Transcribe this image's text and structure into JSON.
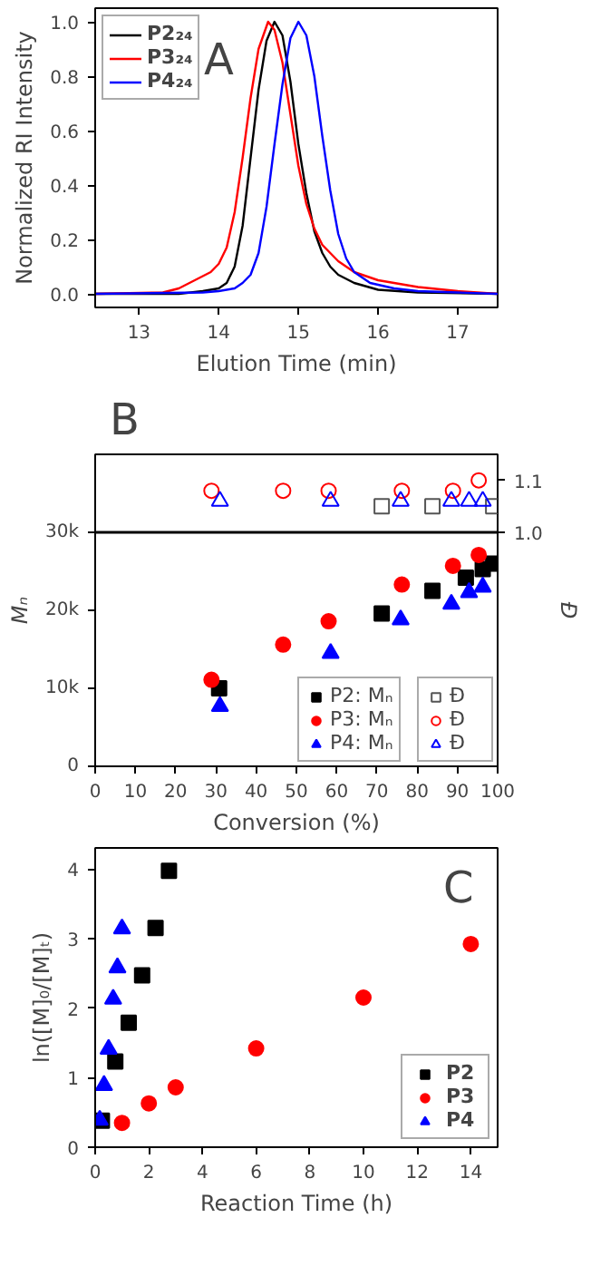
{
  "chart_data": [
    {
      "type": "line",
      "xlabel": "Elution Time (min)",
      "ylabel": "Normalized RI Intensity",
      "annotations": [
        "A"
      ],
      "xlim": [
        12.45,
        17.5
      ],
      "ylim": [
        -0.05,
        1.05
      ],
      "xticks": [
        13,
        14,
        15,
        16,
        17
      ],
      "yticks": [
        {
          "value": 0,
          "label": "0.0"
        },
        {
          "value": 0.2,
          "label": "0.2"
        },
        {
          "value": 0.4,
          "label": "0.4"
        },
        {
          "value": 0.6,
          "label": "0.6"
        },
        {
          "value": 0.8,
          "label": "0.8"
        },
        {
          "value": 1,
          "label": "1.0"
        }
      ],
      "grid": false,
      "legend": "top left",
      "marker": "none",
      "line_style": "solid",
      "series": [
        {
          "name": "P2₂₄",
          "color": "#000000",
          "x": [
            12.45,
            13.5,
            13.8,
            14.0,
            14.1,
            14.2,
            14.3,
            14.4,
            14.5,
            14.6,
            14.7,
            14.8,
            14.9,
            15.0,
            15.1,
            15.2,
            15.3,
            15.4,
            15.5,
            15.7,
            16.0,
            16.5,
            17.5
          ],
          "values": [
            0,
            0,
            0.01,
            0.02,
            0.04,
            0.1,
            0.25,
            0.5,
            0.75,
            0.93,
            1.0,
            0.95,
            0.78,
            0.55,
            0.37,
            0.23,
            0.15,
            0.1,
            0.07,
            0.04,
            0.015,
            0.005,
            0
          ]
        },
        {
          "name": "P3₂₄",
          "color": "#ff0000",
          "x": [
            12.45,
            13.3,
            13.5,
            13.7,
            13.9,
            14.0,
            14.1,
            14.2,
            14.3,
            14.4,
            14.5,
            14.62,
            14.7,
            14.8,
            14.9,
            15.0,
            15.1,
            15.2,
            15.3,
            15.5,
            15.7,
            16.0,
            16.5,
            17.0,
            17.5
          ],
          "values": [
            0,
            0.005,
            0.02,
            0.05,
            0.08,
            0.11,
            0.17,
            0.3,
            0.5,
            0.72,
            0.9,
            1.0,
            0.97,
            0.85,
            0.66,
            0.47,
            0.33,
            0.24,
            0.18,
            0.12,
            0.08,
            0.05,
            0.025,
            0.01,
            0
          ]
        },
        {
          "name": "P4₂₄",
          "color": "#0000ff",
          "x": [
            12.45,
            13.8,
            14.0,
            14.2,
            14.3,
            14.4,
            14.5,
            14.6,
            14.7,
            14.8,
            14.9,
            15.0,
            15.1,
            15.2,
            15.3,
            15.4,
            15.5,
            15.6,
            15.7,
            15.9,
            16.2,
            16.5,
            17.0,
            17.5
          ],
          "values": [
            0,
            0.005,
            0.01,
            0.02,
            0.04,
            0.07,
            0.15,
            0.32,
            0.55,
            0.77,
            0.94,
            1.0,
            0.95,
            0.8,
            0.58,
            0.38,
            0.22,
            0.13,
            0.08,
            0.04,
            0.02,
            0.01,
            0.005,
            0
          ]
        }
      ]
    },
    {
      "type": "scatter",
      "xlabel": "Conversion (%)",
      "ylabel": "Mₙ",
      "y2label": "Đ",
      "annotations": [
        "B"
      ],
      "xlim": [
        0,
        100
      ],
      "ylim": [
        0,
        40000
      ],
      "y2lim": [
        0.55,
        1.15
      ],
      "xticks": [
        0,
        10,
        20,
        30,
        40,
        50,
        60,
        70,
        80,
        90,
        100
      ],
      "yticks": [
        0,
        {
          "value": 10000,
          "label": "10k"
        },
        {
          "value": 20000,
          "label": "20k"
        },
        {
          "value": 30000,
          "label": "30k"
        }
      ],
      "y2ticks": [
        {
          "value": 1.0,
          "label": "1.0"
        },
        {
          "value": 1.1,
          "label": "1.1"
        }
      ],
      "grid": false,
      "legend": "bottom right",
      "ref_lines": [
        {
          "axis": "y",
          "value": 30000,
          "color": "#000000"
        }
      ],
      "series": [
        {
          "name": "P2: Mₙ",
          "color": "#000000",
          "marker": "square",
          "x": [
            30.8,
            71.2,
            83.8,
            92.1,
            96.3,
            98.9
          ],
          "values": [
            10000,
            19600,
            22500,
            24200,
            25300,
            26000
          ]
        },
        {
          "name": "Đ",
          "color": "#555555",
          "marker": "square",
          "axis": "y2",
          "x": [
            71.2,
            83.8,
            98.9
          ],
          "values": [
            1.05,
            1.05,
            1.05
          ]
        },
        {
          "name": "P3: Mₙ",
          "color": "#ff0000",
          "marker": "circle",
          "x": [
            28.9,
            46.7,
            58.0,
            76.2,
            88.9,
            95.3
          ],
          "values": [
            11100,
            15600,
            18600,
            23300,
            25700,
            27100
          ]
        },
        {
          "name": "Đ",
          "color": "#ff0000",
          "marker": "circle",
          "axis": "y2",
          "x": [
            28.9,
            46.7,
            58.0,
            76.2,
            88.9,
            95.3
          ],
          "values": [
            1.08,
            1.08,
            1.08,
            1.08,
            1.08,
            1.1
          ]
        },
        {
          "name": "P4: Mₙ",
          "color": "#0000ff",
          "marker": "triangle",
          "x": [
            31.0,
            58.5,
            75.9,
            88.5,
            92.9,
            96.3
          ],
          "values": [
            7700,
            14500,
            18800,
            20800,
            22300,
            23000
          ]
        },
        {
          "name": "Đ",
          "color": "#0000ff",
          "marker": "triangle",
          "axis": "y2",
          "x": [
            31.0,
            58.5,
            75.9,
            88.5,
            92.9,
            96.3
          ],
          "values": [
            1.06,
            1.06,
            1.06,
            1.06,
            1.06,
            1.06
          ]
        }
      ]
    },
    {
      "type": "scatter",
      "xlabel": "Reaction Time (h)",
      "ylabel": "ln([M]₀/[M]ₜ)",
      "annotations": [
        "C"
      ],
      "xlim": [
        0,
        15
      ],
      "ylim": [
        0,
        4.3
      ],
      "xticks": [
        0,
        2,
        4,
        6,
        8,
        10,
        12,
        14
      ],
      "yticks": [
        0,
        1,
        2,
        3,
        4
      ],
      "grid": false,
      "legend": "bottom right",
      "series": [
        {
          "name": "P2",
          "color": "#000000",
          "marker": "square",
          "x": [
            0.25,
            0.75,
            1.25,
            1.75,
            2.25,
            2.75
          ],
          "values": [
            0.38,
            1.23,
            1.79,
            2.47,
            3.15,
            3.97
          ]
        },
        {
          "name": "P3",
          "color": "#ff0000",
          "marker": "circle",
          "x": [
            1,
            2,
            3,
            6,
            10,
            14
          ],
          "values": [
            0.35,
            0.63,
            0.86,
            1.42,
            2.15,
            2.92
          ]
        },
        {
          "name": "P4",
          "color": "#0000ff",
          "marker": "triangle",
          "x": [
            0.17,
            0.33,
            0.5,
            0.67,
            0.83,
            1.0
          ],
          "values": [
            0.39,
            0.89,
            1.41,
            2.13,
            2.58,
            3.14
          ]
        }
      ]
    }
  ]
}
